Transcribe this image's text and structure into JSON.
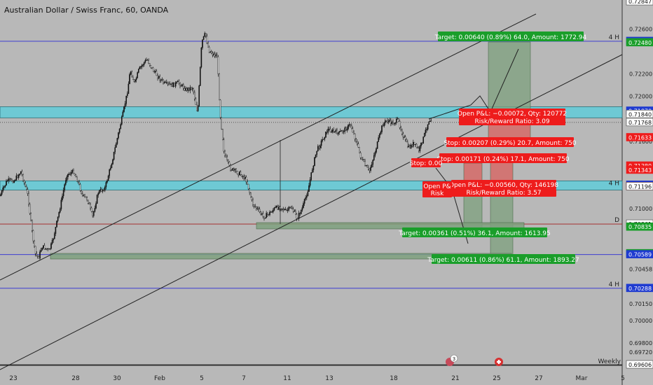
{
  "header": {
    "title": "Australian Dollar / Swiss Franc, 60, OANDA"
  },
  "timeframe_label": "Weekly",
  "colors": {
    "background": "#b8b8b8",
    "candle": "#111111",
    "zone": "#6ec9d4",
    "target_zone": "#7ea07e",
    "target_label": "#1a9e2a",
    "stop_zone": "#d9605d",
    "stop_label": "#ee1c1c",
    "level_blue": "#2b2bd6",
    "level_red": "#a21d1d",
    "axis_blue": "#1f3bd0"
  },
  "chart_data": {
    "type": "candlestick",
    "title": "Australian Dollar / Swiss Franc, 60, OANDA",
    "x_ticks": [
      "23",
      "28",
      "30",
      "Feb",
      "5",
      "7",
      "11",
      "13",
      "18",
      "21",
      "25",
      "27",
      "Mar",
      "5"
    ],
    "y_ticks": [
      "0.72600",
      "0.72200",
      "0.72000",
      "0.71600",
      "0.71000",
      "0.70600",
      "0.70458",
      "0.70150",
      "0.70000",
      "0.69800",
      "0.69720"
    ],
    "ylim": [
      0.696,
      0.7286
    ],
    "price_labels": [
      {
        "text": "0.72847",
        "value": 0.72847,
        "style": "plain"
      },
      {
        "text": "0.72492",
        "value": 0.72492,
        "style": "blue"
      },
      {
        "text": "0.72480",
        "value": 0.7248,
        "style": "green"
      },
      {
        "text": "0.71870",
        "value": 0.7187,
        "style": "blue"
      },
      {
        "text": "0.71840",
        "value": 0.7184,
        "style": "plain"
      },
      {
        "text": "0.71768",
        "value": 0.71768,
        "style": "plain"
      },
      {
        "text": "0.71633",
        "value": 0.71633,
        "style": "red"
      },
      {
        "text": "0.71380",
        "value": 0.7138,
        "style": "red"
      },
      {
        "text": "0.71343",
        "value": 0.71343,
        "style": "red"
      },
      {
        "text": "0.71209",
        "value": 0.71209,
        "style": "blue"
      },
      {
        "text": "0.71197",
        "value": 0.71197,
        "style": "red"
      },
      {
        "text": "0.71196",
        "value": 0.71196,
        "style": "plain"
      },
      {
        "text": "0.70861",
        "value": 0.70861,
        "style": "plain"
      },
      {
        "text": "0.70835",
        "value": 0.70835,
        "style": "green"
      },
      {
        "text": "0.70598",
        "value": 0.70598,
        "style": "green"
      },
      {
        "text": "0.70589",
        "value": 0.70589,
        "style": "blue"
      },
      {
        "text": "0.70288",
        "value": 0.70288,
        "style": "blue"
      },
      {
        "text": "0.69606",
        "value": 0.69606,
        "style": "plain"
      }
    ],
    "levels": [
      {
        "value": 0.72492,
        "color": "blue",
        "label": "4 H"
      },
      {
        "value": 0.70861,
        "color": "red",
        "label": "D"
      },
      {
        "value": 0.70589,
        "color": "blue",
        "label": ""
      },
      {
        "value": 0.70288,
        "color": "blue",
        "label": "4 H"
      },
      {
        "value": 0.69606,
        "color": "dark",
        "label": ""
      }
    ],
    "zones": [
      {
        "from": 0.7184,
        "to": 0.7187,
        "label": ""
      },
      {
        "from": 0.71196,
        "to": 0.71209,
        "label": "4 H"
      }
    ],
    "labels": [
      {
        "text": "Target: 0.00640 (0.89%) 64.0, Amount: 1772.94",
        "color": "green"
      },
      {
        "text": "Open P&L: −0.00072, Qty: 120772",
        "color": "red"
      },
      {
        "text": "Risk/Reward Ratio: 3.09",
        "color": "red"
      },
      {
        "text": "Stop: 0.00207 (0.29%) 20.7, Amount: 750",
        "color": "red"
      },
      {
        "text": "Stop: 0.00171 (0.24%) 17.1, Amount: 750",
        "color": "red"
      },
      {
        "text": "Stop: 0.00",
        "color": "red"
      },
      {
        "text": "Open P&L: −0.00560, Qty: 146198",
        "color": "red"
      },
      {
        "text": "Risk/Reward Ratio: 3.57",
        "color": "red"
      },
      {
        "text": "Open P&",
        "color": "red"
      },
      {
        "text": "Risk",
        "color": "red"
      },
      {
        "text": "Target: 0.00361 (0.51%) 36.1, Amount: 1613.95",
        "color": "green"
      },
      {
        "text": "Target: 0.00611 (0.86%) 61.1, Amount: 1893.27",
        "color": "green"
      }
    ],
    "event_badge": "3"
  }
}
